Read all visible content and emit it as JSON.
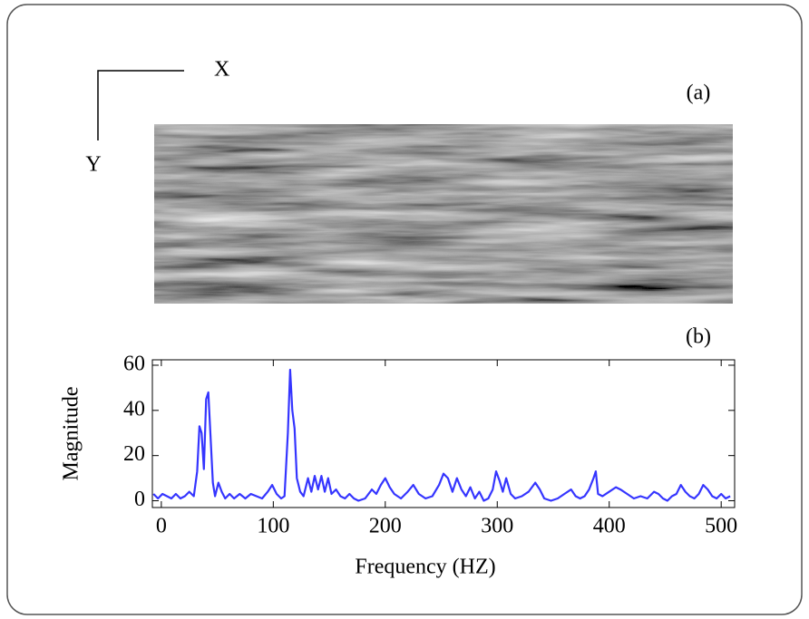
{
  "chart_data": {
    "type": "line",
    "annotations": [
      "X",
      "Y",
      "(a)",
      "(b)"
    ],
    "x_label": "Frequency (HZ)",
    "y_label": "Magnitude",
    "xlim": [
      -8,
      512
    ],
    "ylim": [
      -3,
      62.4
    ],
    "xticks": [
      0,
      100,
      200,
      300,
      400,
      500
    ],
    "yticks": [
      0,
      20,
      40,
      60
    ],
    "grid": false,
    "x": [
      -7,
      -3,
      1,
      5,
      9,
      13,
      17,
      21,
      25,
      29,
      32,
      34,
      36,
      38,
      40,
      42,
      44,
      46,
      48,
      51,
      54,
      57,
      61,
      65,
      70,
      75,
      80,
      85,
      90,
      95,
      99,
      103,
      107,
      110,
      113,
      115,
      117,
      119,
      121,
      124,
      127,
      131,
      134,
      137,
      140,
      143,
      146,
      149,
      152,
      156,
      160,
      164,
      168,
      172,
      176,
      182,
      188,
      192,
      196,
      200,
      204,
      208,
      214,
      220,
      225,
      230,
      236,
      242,
      248,
      252,
      256,
      260,
      264,
      268,
      272,
      276,
      280,
      284,
      288,
      292,
      296,
      299,
      302,
      305,
      308,
      312,
      316,
      322,
      328,
      334,
      338,
      342,
      348,
      354,
      360,
      366,
      370,
      374,
      378,
      382,
      386,
      388,
      390,
      394,
      400,
      406,
      410,
      416,
      422,
      428,
      434,
      440,
      444,
      448,
      452,
      456,
      460,
      464,
      468,
      472,
      476,
      480,
      484,
      488,
      492,
      496,
      500,
      504,
      508
    ],
    "series": [
      {
        "name": "Magnitude",
        "color": "#3535ff",
        "values": [
          3,
          1,
          3,
          2,
          1,
          3,
          1,
          2,
          4,
          2,
          13,
          33,
          30,
          14,
          45,
          48,
          28,
          8,
          2,
          8,
          4,
          1,
          3,
          1,
          3,
          1,
          3,
          2,
          1,
          4,
          7,
          3,
          1,
          2,
          30,
          58,
          40,
          32,
          10,
          4,
          2,
          10,
          4,
          11,
          5,
          11,
          4,
          10,
          3,
          5,
          2,
          1,
          3,
          1,
          0,
          1,
          5,
          3,
          7,
          10,
          6,
          3,
          1,
          4,
          7,
          3,
          1,
          2,
          7,
          12,
          10,
          4,
          10,
          5,
          2,
          6,
          1,
          4,
          0,
          1,
          5,
          13,
          9,
          4,
          10,
          3,
          1,
          2,
          4,
          8,
          5,
          1,
          0,
          1,
          3,
          5,
          2,
          1,
          2,
          5,
          10,
          13,
          3,
          2,
          4,
          6,
          5,
          3,
          1,
          2,
          1,
          4,
          3,
          1,
          0,
          2,
          3,
          7,
          4,
          2,
          1,
          3,
          7,
          5,
          2,
          1,
          3,
          1,
          2
        ]
      }
    ]
  }
}
